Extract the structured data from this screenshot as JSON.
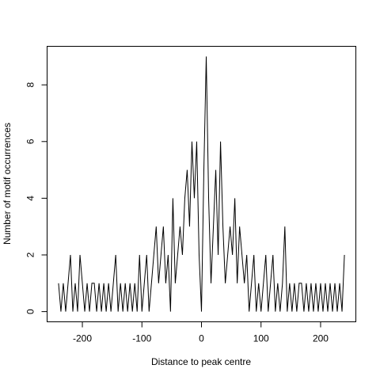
{
  "chart_data": {
    "type": "line",
    "xlabel": "Distance to peak centre",
    "ylabel": "Number of motif occurrences",
    "color": "#000000",
    "x": [
      -240,
      -236,
      -232,
      -228,
      -224,
      -220,
      -216,
      -212,
      -208,
      -204,
      -200,
      -196,
      -192,
      -188,
      -184,
      -180,
      -176,
      -172,
      -168,
      -164,
      -160,
      -156,
      -152,
      -148,
      -144,
      -140,
      -136,
      -132,
      -128,
      -124,
      -120,
      -116,
      -112,
      -108,
      -104,
      -100,
      -96,
      -92,
      -88,
      -84,
      -80,
      -76,
      -72,
      -68,
      -64,
      -60,
      -56,
      -52,
      -48,
      -44,
      -40,
      -36,
      -32,
      -28,
      -24,
      -20,
      -16,
      -12,
      -8,
      -4,
      0,
      4,
      8,
      12,
      16,
      20,
      24,
      28,
      32,
      36,
      40,
      44,
      48,
      52,
      56,
      60,
      64,
      68,
      72,
      76,
      80,
      84,
      88,
      92,
      96,
      100,
      104,
      108,
      112,
      116,
      120,
      124,
      128,
      132,
      136,
      140,
      144,
      148,
      152,
      156,
      160,
      164,
      168,
      172,
      176,
      180,
      184,
      188,
      192,
      196,
      200,
      204,
      208,
      212,
      216,
      220,
      224,
      228,
      232,
      236,
      240
    ],
    "values": [
      1,
      0,
      1,
      0,
      1,
      2,
      0,
      1,
      0,
      2,
      1,
      0,
      1,
      0,
      1,
      1,
      0,
      1,
      0,
      1,
      0,
      1,
      0,
      1,
      2,
      0,
      1,
      0,
      1,
      0,
      1,
      0,
      1,
      0,
      2,
      0,
      1,
      2,
      0,
      1,
      2,
      3,
      1,
      2,
      3,
      1,
      2,
      0,
      4,
      1,
      2,
      3,
      2,
      4,
      5,
      3,
      6,
      4,
      6,
      2,
      0,
      5,
      9,
      4,
      1,
      3,
      5,
      2,
      6,
      3,
      1,
      2,
      3,
      2,
      4,
      1,
      3,
      2,
      1,
      2,
      0,
      1,
      2,
      0,
      1,
      0,
      1,
      2,
      0,
      1,
      2,
      0,
      1,
      0,
      1,
      3,
      0,
      1,
      0,
      1,
      0,
      1,
      1,
      0,
      1,
      0,
      1,
      0,
      1,
      0,
      1,
      0,
      1,
      0,
      1,
      0,
      1,
      0,
      1,
      0,
      2
    ],
    "xlim": [
      -259.2,
      259.2
    ],
    "ylim": [
      -0.36,
      9.36
    ],
    "xticks": [
      -200,
      -100,
      0,
      100,
      200
    ],
    "yticks": [
      0,
      2,
      4,
      6,
      8
    ]
  }
}
